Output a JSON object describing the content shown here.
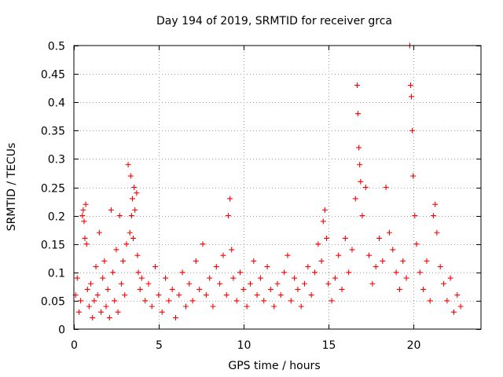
{
  "chart_data": {
    "type": "scatter",
    "title": "Day 194 of 2019, SRMTID for receiver grca",
    "xlabel": "GPS time / hours",
    "ylabel": "SRMTID / TECUs",
    "xlim": [
      0,
      24
    ],
    "ylim": [
      0,
      0.5
    ],
    "x_ticks": [
      0,
      5,
      10,
      15,
      20
    ],
    "x_tick_labels": [
      "0",
      "5",
      "10",
      "15",
      "20"
    ],
    "y_ticks": [
      0,
      0.05,
      0.1,
      0.15,
      0.2,
      0.25,
      0.3,
      0.35,
      0.4,
      0.45,
      0.5
    ],
    "y_tick_labels": [
      "0",
      "0.05",
      "0.1",
      "0.15",
      "0.2",
      "0.25",
      "0.3",
      "0.35",
      "0.4",
      "0.45",
      "0.5"
    ],
    "grid": true,
    "marker": "+",
    "series": [
      {
        "name": "SRMTID",
        "color": "#ff0000",
        "points": [
          [
            0.1,
            0.06
          ],
          [
            0.2,
            0.09
          ],
          [
            0.3,
            0.03
          ],
          [
            0.4,
            0.05
          ],
          [
            0.5,
            0.2
          ],
          [
            0.55,
            0.21
          ],
          [
            0.6,
            0.19
          ],
          [
            0.65,
            0.16
          ],
          [
            0.7,
            0.22
          ],
          [
            0.75,
            0.15
          ],
          [
            0.8,
            0.07
          ],
          [
            0.9,
            0.04
          ],
          [
            1.0,
            0.08
          ],
          [
            1.1,
            0.02
          ],
          [
            1.2,
            0.05
          ],
          [
            1.3,
            0.11
          ],
          [
            1.4,
            0.06
          ],
          [
            1.5,
            0.17
          ],
          [
            1.6,
            0.03
          ],
          [
            1.7,
            0.09
          ],
          [
            1.8,
            0.12
          ],
          [
            1.9,
            0.04
          ],
          [
            2.0,
            0.07
          ],
          [
            2.1,
            0.02
          ],
          [
            2.2,
            0.21
          ],
          [
            2.3,
            0.1
          ],
          [
            2.4,
            0.05
          ],
          [
            2.5,
            0.14
          ],
          [
            2.6,
            0.03
          ],
          [
            2.7,
            0.2
          ],
          [
            2.8,
            0.08
          ],
          [
            2.9,
            0.12
          ],
          [
            3.0,
            0.06
          ],
          [
            3.1,
            0.15
          ],
          [
            3.2,
            0.29
          ],
          [
            3.3,
            0.17
          ],
          [
            3.35,
            0.27
          ],
          [
            3.4,
            0.2
          ],
          [
            3.45,
            0.23
          ],
          [
            3.5,
            0.16
          ],
          [
            3.55,
            0.25
          ],
          [
            3.6,
            0.21
          ],
          [
            3.7,
            0.24
          ],
          [
            3.75,
            0.13
          ],
          [
            3.8,
            0.1
          ],
          [
            3.9,
            0.07
          ],
          [
            4.0,
            0.09
          ],
          [
            4.2,
            0.05
          ],
          [
            4.4,
            0.08
          ],
          [
            4.6,
            0.04
          ],
          [
            4.8,
            0.11
          ],
          [
            5.0,
            0.06
          ],
          [
            5.2,
            0.03
          ],
          [
            5.4,
            0.09
          ],
          [
            5.6,
            0.05
          ],
          [
            5.8,
            0.07
          ],
          [
            6.0,
            0.02
          ],
          [
            6.2,
            0.06
          ],
          [
            6.4,
            0.1
          ],
          [
            6.6,
            0.04
          ],
          [
            6.8,
            0.08
          ],
          [
            7.0,
            0.05
          ],
          [
            7.2,
            0.12
          ],
          [
            7.4,
            0.07
          ],
          [
            7.6,
            0.15
          ],
          [
            7.8,
            0.06
          ],
          [
            8.0,
            0.09
          ],
          [
            8.2,
            0.04
          ],
          [
            8.4,
            0.11
          ],
          [
            8.6,
            0.08
          ],
          [
            8.8,
            0.13
          ],
          [
            9.0,
            0.06
          ],
          [
            9.1,
            0.2
          ],
          [
            9.2,
            0.23
          ],
          [
            9.3,
            0.14
          ],
          [
            9.4,
            0.09
          ],
          [
            9.6,
            0.05
          ],
          [
            9.8,
            0.1
          ],
          [
            10.0,
            0.07
          ],
          [
            10.2,
            0.04
          ],
          [
            10.4,
            0.08
          ],
          [
            10.6,
            0.12
          ],
          [
            10.8,
            0.06
          ],
          [
            11.0,
            0.09
          ],
          [
            11.2,
            0.05
          ],
          [
            11.4,
            0.11
          ],
          [
            11.6,
            0.07
          ],
          [
            11.8,
            0.04
          ],
          [
            12.0,
            0.08
          ],
          [
            12.2,
            0.06
          ],
          [
            12.4,
            0.1
          ],
          [
            12.6,
            0.13
          ],
          [
            12.8,
            0.05
          ],
          [
            13.0,
            0.09
          ],
          [
            13.2,
            0.07
          ],
          [
            13.4,
            0.04
          ],
          [
            13.6,
            0.08
          ],
          [
            13.8,
            0.11
          ],
          [
            14.0,
            0.06
          ],
          [
            14.2,
            0.1
          ],
          [
            14.4,
            0.15
          ],
          [
            14.6,
            0.12
          ],
          [
            14.7,
            0.19
          ],
          [
            14.8,
            0.21
          ],
          [
            14.9,
            0.16
          ],
          [
            15.0,
            0.08
          ],
          [
            15.2,
            0.05
          ],
          [
            15.4,
            0.09
          ],
          [
            15.6,
            0.13
          ],
          [
            15.8,
            0.07
          ],
          [
            16.0,
            0.16
          ],
          [
            16.2,
            0.1
          ],
          [
            16.4,
            0.14
          ],
          [
            16.6,
            0.23
          ],
          [
            16.7,
            0.43
          ],
          [
            16.75,
            0.38
          ],
          [
            16.8,
            0.32
          ],
          [
            16.85,
            0.29
          ],
          [
            16.9,
            0.26
          ],
          [
            17.0,
            0.2
          ],
          [
            17.2,
            0.25
          ],
          [
            17.4,
            0.13
          ],
          [
            17.6,
            0.08
          ],
          [
            17.8,
            0.11
          ],
          [
            18.0,
            0.16
          ],
          [
            18.2,
            0.12
          ],
          [
            18.4,
            0.25
          ],
          [
            18.6,
            0.17
          ],
          [
            18.8,
            0.14
          ],
          [
            19.0,
            0.1
          ],
          [
            19.2,
            0.07
          ],
          [
            19.4,
            0.12
          ],
          [
            19.6,
            0.09
          ],
          [
            19.8,
            0.5
          ],
          [
            19.85,
            0.43
          ],
          [
            19.9,
            0.41
          ],
          [
            19.95,
            0.35
          ],
          [
            20.0,
            0.27
          ],
          [
            20.1,
            0.2
          ],
          [
            20.2,
            0.15
          ],
          [
            20.4,
            0.1
          ],
          [
            20.6,
            0.07
          ],
          [
            20.8,
            0.12
          ],
          [
            21.0,
            0.05
          ],
          [
            21.2,
            0.2
          ],
          [
            21.3,
            0.22
          ],
          [
            21.4,
            0.17
          ],
          [
            21.6,
            0.11
          ],
          [
            21.8,
            0.08
          ],
          [
            22.0,
            0.05
          ],
          [
            22.2,
            0.09
          ],
          [
            22.4,
            0.03
          ],
          [
            22.6,
            0.06
          ],
          [
            22.8,
            0.04
          ]
        ]
      }
    ]
  }
}
